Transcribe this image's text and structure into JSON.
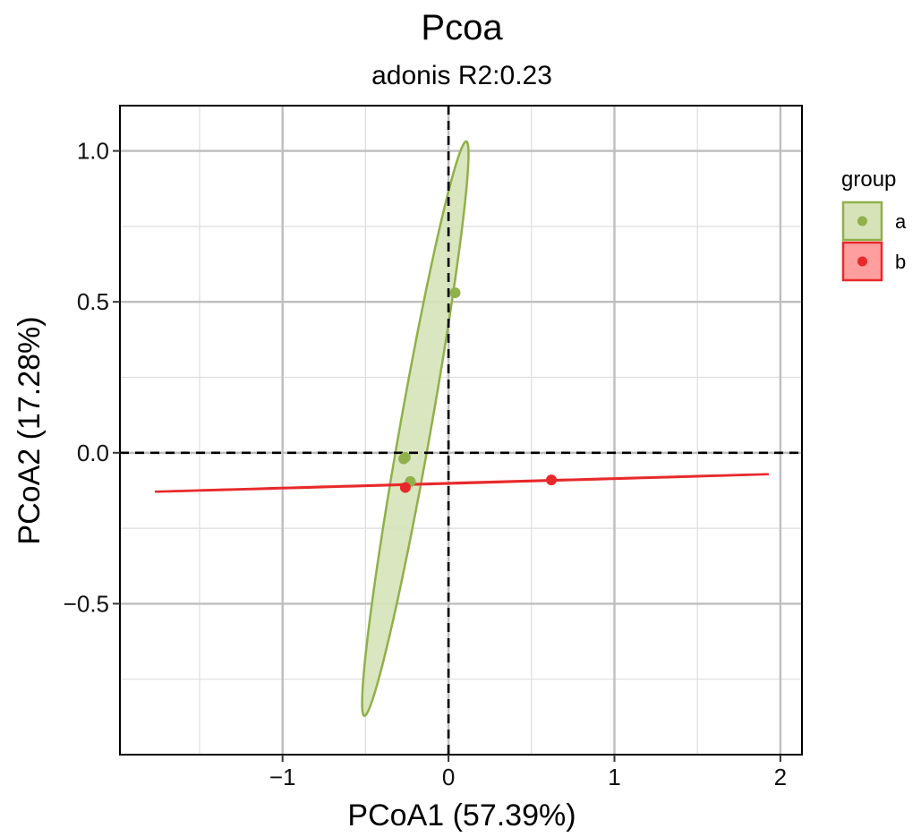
{
  "chart_data": {
    "type": "scatter",
    "title": "Pcoa",
    "subtitle": "adonis R2:0.23",
    "xlabel": "PCoA1 (57.39%)",
    "ylabel": "PCoA2 (17.28%)",
    "xlim": [
      -1.98,
      2.13
    ],
    "ylim": [
      -1.0,
      1.15
    ],
    "x_ticks": [
      -1,
      0,
      1,
      2
    ],
    "x_tick_labels": [
      "−1",
      "0",
      "1",
      "2"
    ],
    "y_ticks": [
      -0.5,
      0.0,
      0.5,
      1.0
    ],
    "y_tick_labels": [
      "−0.5",
      "0.0",
      "0.5",
      "1.0"
    ],
    "grid": true,
    "reference_lines": {
      "x": 0,
      "y": 0,
      "style": "dashed"
    },
    "legend": {
      "title": "group",
      "position": "right"
    },
    "series": [
      {
        "name": "a",
        "color": "#8FB04A",
        "fill": "#D6E3B8",
        "points": [
          {
            "x": 0.04,
            "y": 0.53
          },
          {
            "x": -0.27,
            "y": -0.02
          },
          {
            "x": -0.26,
            "y": -0.015
          },
          {
            "x": -0.23,
            "y": -0.095
          }
        ],
        "ellipse": {
          "cx": -0.2,
          "cy": 0.08,
          "semi_major": 1.0,
          "semi_minor": 0.09,
          "angle_deg": 72
        }
      },
      {
        "name": "b",
        "color": "#E8292B",
        "fill": "#FF9E9E",
        "points": [
          {
            "x": -0.26,
            "y": -0.115
          },
          {
            "x": 0.62,
            "y": -0.09
          }
        ],
        "ellipse": {
          "cx": 0.08,
          "cy": -0.1,
          "semi_major": 1.85,
          "semi_minor": 0.001,
          "angle_deg": 0.9
        }
      }
    ]
  }
}
